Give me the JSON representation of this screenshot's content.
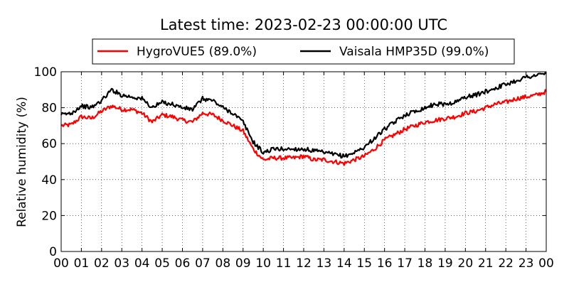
{
  "chart_data": {
    "type": "line",
    "title": "Latest time: 2023-02-23 00:00:00 UTC",
    "xlabel": "",
    "ylabel": "Relative humidity (%)",
    "xlim": [
      0,
      24
    ],
    "ylim": [
      0,
      100
    ],
    "grid": true,
    "legend_position": "top",
    "x_tick_labels": [
      "00",
      "01",
      "02",
      "03",
      "04",
      "05",
      "06",
      "07",
      "08",
      "09",
      "10",
      "11",
      "12",
      "13",
      "14",
      "15",
      "16",
      "17",
      "18",
      "19",
      "20",
      "21",
      "22",
      "23",
      "00"
    ],
    "y_tick_labels": [
      "0",
      "20",
      "40",
      "60",
      "80",
      "100"
    ],
    "x": [
      0,
      0.5,
      1,
      1.5,
      2,
      2.5,
      3,
      3.5,
      4,
      4.5,
      5,
      5.5,
      6,
      6.5,
      7,
      7.5,
      8,
      8.5,
      9,
      9.5,
      10,
      10.5,
      11,
      11.5,
      12,
      12.5,
      13,
      13.5,
      14,
      14.5,
      15,
      15.5,
      16,
      16.5,
      17,
      17.5,
      18,
      18.5,
      19,
      19.5,
      20,
      20.5,
      21,
      21.5,
      22,
      22.5,
      23,
      23.5,
      24
    ],
    "series": [
      {
        "name": "HygroVUE5 (89.0%)",
        "color": "#ff0000",
        "values": [
          70,
          70.5,
          75,
          74,
          78,
          81,
          79,
          79,
          77,
          72,
          76,
          75,
          73,
          72,
          77,
          76,
          73,
          70,
          67,
          57,
          51,
          52,
          52,
          52,
          53,
          51,
          51,
          50,
          49,
          51,
          53,
          57,
          62,
          65,
          68,
          70,
          72,
          73,
          74,
          75,
          77,
          78,
          80,
          82,
          83,
          85,
          86,
          87,
          89
        ]
      },
      {
        "name": "Vaisala HMP35D (99.0%)",
        "color": "#000000",
        "values": [
          76,
          77,
          81,
          80,
          84,
          90,
          87,
          86,
          85,
          80,
          83,
          82,
          80,
          79,
          85,
          84,
          80,
          77,
          72,
          61,
          55,
          57,
          57,
          57,
          57,
          56,
          55,
          54,
          53,
          55,
          58,
          63,
          68,
          72,
          76,
          78,
          80,
          82,
          82,
          83,
          86,
          87,
          89,
          91,
          93,
          95,
          97,
          98,
          99
        ]
      }
    ]
  }
}
